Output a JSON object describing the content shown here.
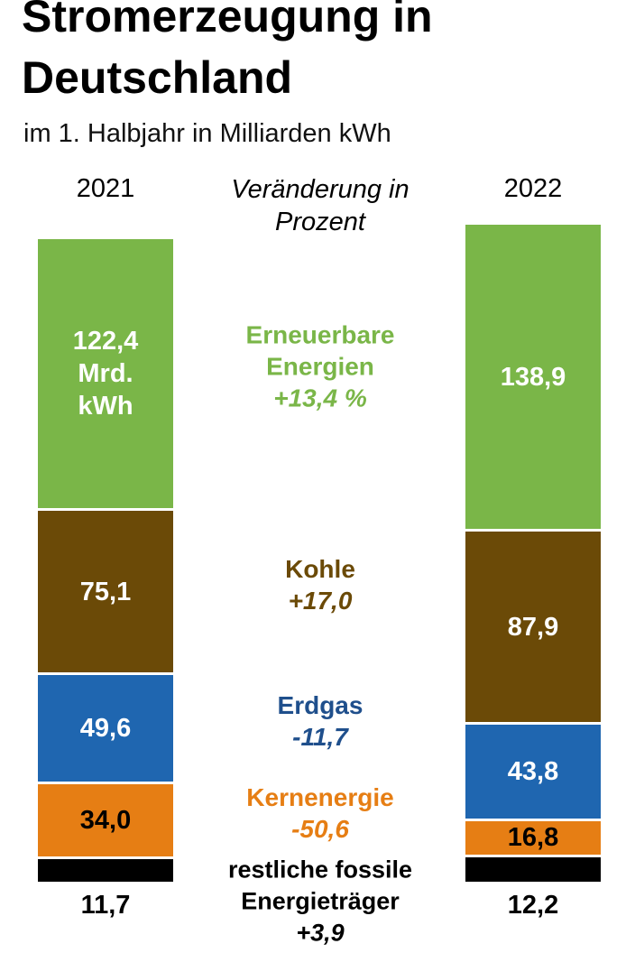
{
  "chart_data": {
    "type": "stacked_bar",
    "title": "Stromerzeugung in Deutschland",
    "subtitle": "im 1. Halbjahr in Milliarden kWh",
    "change_header": "Veränderung in Prozent",
    "categories": [
      "2021",
      "2022"
    ],
    "series": [
      {
        "name": "restliche fossile Energieträger",
        "color": "#000000",
        "text_color": "#000000",
        "label_color": "#000000",
        "label_position": "below",
        "values": [
          11.7,
          12.2
        ],
        "value_labels": [
          "11,7",
          "12,2"
        ],
        "change": 3.9,
        "change_label": "+3,9"
      },
      {
        "name": "Kernenergie",
        "color": "#e67e14",
        "text_color": "#e67e14",
        "label_color": "#000000",
        "label_position": "inside",
        "values": [
          34.0,
          16.8
        ],
        "value_labels": [
          "34,0",
          "16,8"
        ],
        "change": -50.6,
        "change_label": "-50,6"
      },
      {
        "name": "Erdgas",
        "color": "#1f66b0",
        "text_color": "#1f4f8c",
        "label_color": "#ffffff",
        "label_position": "inside",
        "values": [
          49.6,
          43.8
        ],
        "value_labels": [
          "49,6",
          "43,8"
        ],
        "change": -11.7,
        "change_label": "-11,7"
      },
      {
        "name": "Kohle",
        "color": "#6b4a07",
        "text_color": "#6b4a07",
        "label_color": "#ffffff",
        "label_position": "inside",
        "values": [
          75.1,
          87.9
        ],
        "value_labels": [
          "75,1",
          "87,9"
        ],
        "change": 17.0,
        "change_label": "+17,0"
      },
      {
        "name": "Erneuerbare Energien",
        "color": "#7ab648",
        "text_color": "#7ab648",
        "label_color": "#ffffff",
        "label_position": "inside",
        "values": [
          122.4,
          138.9
        ],
        "value_labels": [
          "122,4 Mrd. kWh",
          "138,9"
        ],
        "change": 13.4,
        "change_label": "+13,4 %"
      }
    ]
  }
}
